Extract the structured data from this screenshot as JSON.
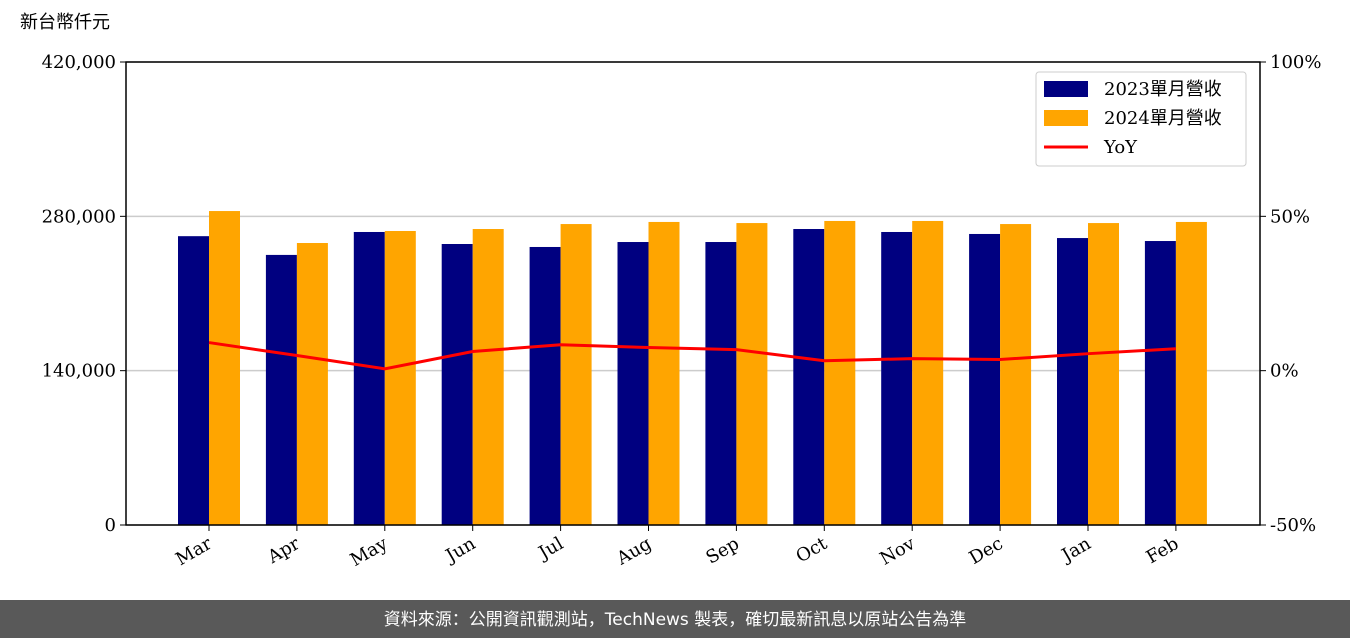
{
  "chart_data": {
    "type": "bar",
    "y_label": "新台幣仟元",
    "footer": "資料來源：公開資訊觀測站，TechNews 製表，確切最新訊息以原站公告為準",
    "categories": [
      "Mar",
      "Apr",
      "May",
      "Jun",
      "Jul",
      "Aug",
      "Sep",
      "Oct",
      "Nov",
      "Dec",
      "Jan",
      "Feb"
    ],
    "series": [
      {
        "name": "2023單月營收",
        "color": "#000080",
        "values": [
          262000,
          245000,
          265800,
          254900,
          252200,
          256700,
          256700,
          268500,
          265800,
          264000,
          260300,
          257600
        ]
      },
      {
        "name": "2024單月營收",
        "color": "#ffa500",
        "values": [
          284800,
          255800,
          266700,
          268500,
          273000,
          274900,
          273900,
          275800,
          275800,
          273000,
          273900,
          274900
        ]
      },
      {
        "name": "YoY",
        "type": "line",
        "axis": "y2",
        "color": "#ff0000",
        "values": [
          9.1,
          4.9,
          0.6,
          6.2,
          8.4,
          7.5,
          6.8,
          3.2,
          3.9,
          3.6,
          5.5,
          7.1
        ]
      }
    ],
    "ylim": [
      0,
      420000
    ],
    "yticks": [
      0,
      {
        "value": 140000,
        "label": "140,000"
      },
      {
        "value": 280000,
        "label": "280,000"
      },
      {
        "value": 420000,
        "label": "420,000"
      }
    ],
    "y2lim": [
      -50,
      100
    ],
    "y2ticks": [
      {
        "value": -50,
        "label": "-50%"
      },
      {
        "value": 0,
        "label": "0%"
      },
      {
        "value": 50,
        "label": "50%"
      },
      {
        "value": 100,
        "label": "100%"
      }
    ],
    "grid": true,
    "legend": "upper right"
  }
}
